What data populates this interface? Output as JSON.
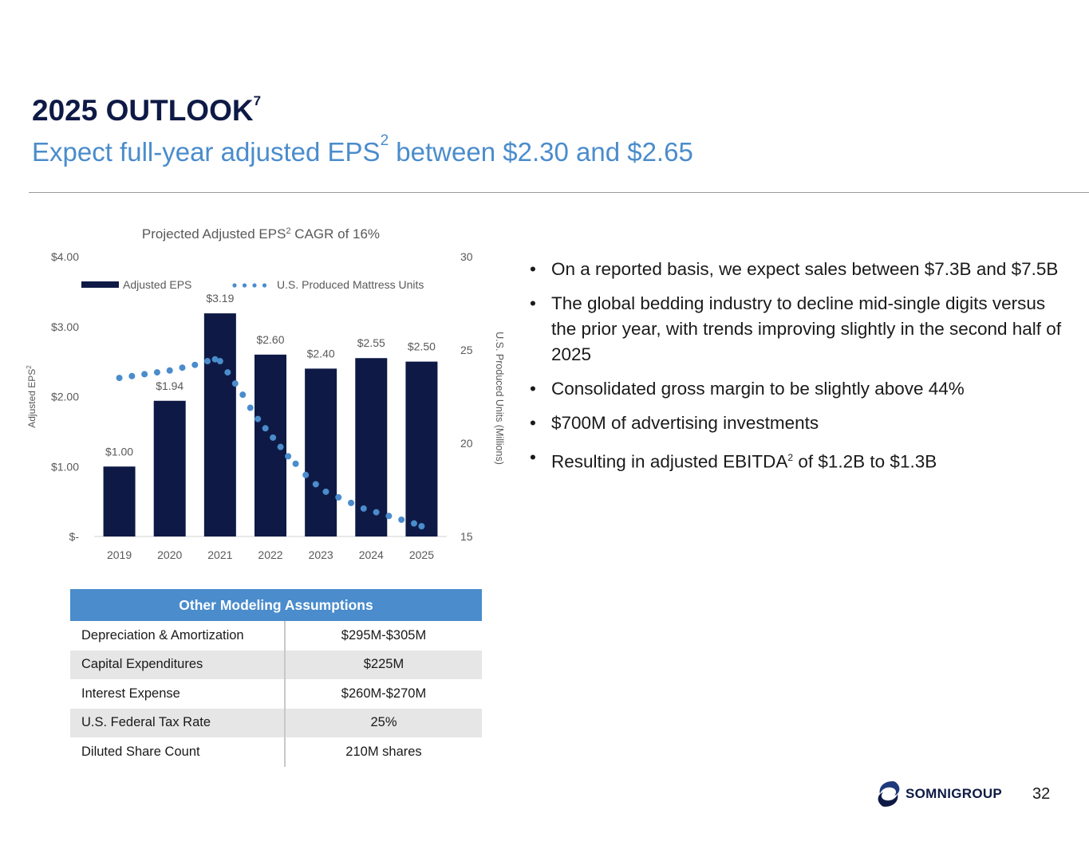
{
  "header": {
    "title": "2025 OUTLOOK",
    "title_note": "7",
    "subtitle_pre": "Expect full-year adjusted EPS",
    "subtitle_note": "2",
    "subtitle_post": " between $2.30 and $2.65"
  },
  "chart_data": {
    "type": "bar",
    "title": "Projected Adjusted EPS",
    "title_note": "2",
    "title_post": " CAGR of 16%",
    "categories": [
      "2019",
      "2020",
      "2021",
      "2022",
      "2023",
      "2024",
      "2025"
    ],
    "series": [
      {
        "name": "Adjusted EPS",
        "type": "bar",
        "axis": "left",
        "values": [
          1.0,
          1.94,
          3.19,
          2.6,
          2.4,
          2.55,
          2.5
        ],
        "labels": [
          "$1.00",
          "$1.94",
          "$3.19",
          "$2.60",
          "$2.40",
          "$2.55",
          "$2.50"
        ],
        "color": "#0e1a45"
      },
      {
        "name": "U.S. Produced Mattress Units",
        "type": "dotted-line",
        "axis": "right",
        "x": [
          0,
          0.25,
          0.5,
          0.75,
          1.0,
          1.25,
          1.5,
          1.75,
          1.9,
          2.0,
          2.15,
          2.3,
          2.45,
          2.6,
          2.75,
          2.9,
          3.05,
          3.2,
          3.35,
          3.5,
          3.7,
          3.9,
          4.1,
          4.35,
          4.6,
          4.85,
          5.1,
          5.35,
          5.6,
          5.85,
          6.0
        ],
        "values": [
          23.5,
          23.6,
          23.7,
          23.8,
          23.9,
          24.05,
          24.2,
          24.4,
          24.5,
          24.4,
          23.8,
          23.2,
          22.6,
          21.9,
          21.3,
          20.8,
          20.3,
          19.8,
          19.3,
          18.9,
          18.3,
          17.8,
          17.4,
          17.1,
          16.8,
          16.5,
          16.3,
          16.1,
          15.9,
          15.7,
          15.55
        ],
        "color": "#4a8ccc"
      }
    ],
    "y_left": {
      "label": "Adjusted EPS",
      "label_note": "2",
      "min": 0,
      "max": 4,
      "ticks": [
        0,
        1,
        2,
        3,
        4
      ],
      "tick_labels": [
        "$-",
        "$1.00",
        "$2.00",
        "$3.00",
        "$4.00"
      ]
    },
    "y_right": {
      "label": "U.S. Produced Units (Millions)",
      "min": 15,
      "max": 30,
      "ticks": [
        15,
        20,
        25,
        30
      ],
      "tick_labels": [
        "15",
        "20",
        "25",
        "30"
      ]
    },
    "legend": {
      "position": "top",
      "items": [
        "Adjusted EPS",
        "U.S. Produced Mattress Units"
      ]
    },
    "grid": false
  },
  "bullets": [
    {
      "text": "On a reported basis, we expect sales between $7.3B and $7.5B"
    },
    {
      "text": "The global bedding industry to decline mid-single digits versus the prior year, with trends improving slightly in the second half of 2025"
    },
    {
      "text": "Consolidated gross margin to be slightly above 44%"
    },
    {
      "text": "$700M of advertising investments"
    },
    {
      "text": "Resulting in adjusted EBITDA",
      "note": "2",
      "post": " of $1.2B to $1.3B"
    }
  ],
  "bullet_char": "•",
  "assumptions": {
    "header": "Other Modeling Assumptions",
    "rows": [
      {
        "label": "Depreciation & Amortization",
        "value": "$295M-$305M"
      },
      {
        "label": "Capital Expenditures",
        "value": "$225M"
      },
      {
        "label": "Interest Expense",
        "value": "$260M-$270M"
      },
      {
        "label": "U.S. Federal Tax Rate",
        "value": "25%"
      },
      {
        "label": "Diluted Share Count",
        "value": "210M shares"
      }
    ]
  },
  "footer": {
    "logo_text": "SOMNIGROUP",
    "page_number": "32"
  },
  "colors": {
    "navy": "#0e1a45",
    "accent_blue": "#4a8ccc",
    "table_shade": "#e6e6e6"
  }
}
